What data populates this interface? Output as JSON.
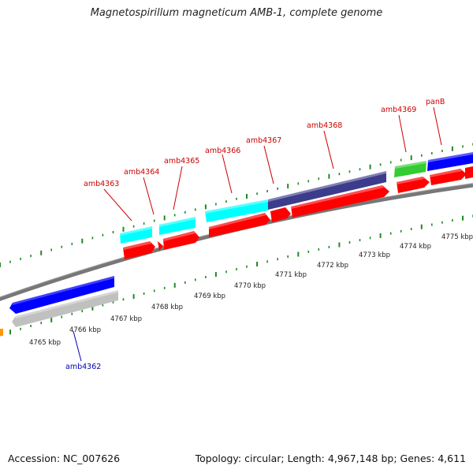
{
  "title": "Magnetospirillum magneticum AMB-1, complete genome",
  "footer": {
    "accession": "Accession: NC_007626",
    "summary": "Topology: circular; Length: 4,967,148 bp; Genes: 4,611"
  },
  "colors": {
    "label_forward": "#cc0000",
    "label_reverse": "#0000bb",
    "tick": "#228822",
    "backbone": "#777777",
    "background": "#ffffff"
  },
  "kbp_labels": [
    {
      "text": "4765 kbp"
    },
    {
      "text": "4766 kbp"
    },
    {
      "text": "4767 kbp"
    },
    {
      "text": "4768 kbp"
    },
    {
      "text": "4769 kbp"
    },
    {
      "text": "4770 kbp"
    },
    {
      "text": "4771 kbp"
    },
    {
      "text": "4772 kbp"
    },
    {
      "text": "4773 kbp"
    },
    {
      "text": "4774 kbp"
    },
    {
      "text": "4775 kbp"
    }
  ],
  "genes_forward": [
    {
      "name": "amb4363",
      "gene_color": "#ff0000",
      "cds_color": "#00ffff"
    },
    {
      "name": "amb4364",
      "gene_color": "#ff0000",
      "cds_color": "#00ffff"
    },
    {
      "name": "amb4365",
      "gene_color": "#ff0000",
      "cds_color": "#00ffff"
    },
    {
      "name": "amb4366",
      "gene_color": "#ff0000",
      "cds_color": "#00ffff"
    },
    {
      "name": "amb4367",
      "gene_color": "#ff0000",
      "cds_color": "#3c3c8c"
    },
    {
      "name": "amb4368",
      "gene_color": "#ff0000",
      "cds_color": "#3c3c8c"
    },
    {
      "name": "amb4369",
      "gene_color": "#ff0000",
      "cds_color": "#33cc33"
    },
    {
      "name": "panB",
      "gene_color": "#ff0000",
      "cds_color": "#0000ff"
    }
  ],
  "genes_reverse": [
    {
      "name": "amb4362",
      "gene_color": "#c0c0c0",
      "cds_color": "#0000ff"
    }
  ]
}
